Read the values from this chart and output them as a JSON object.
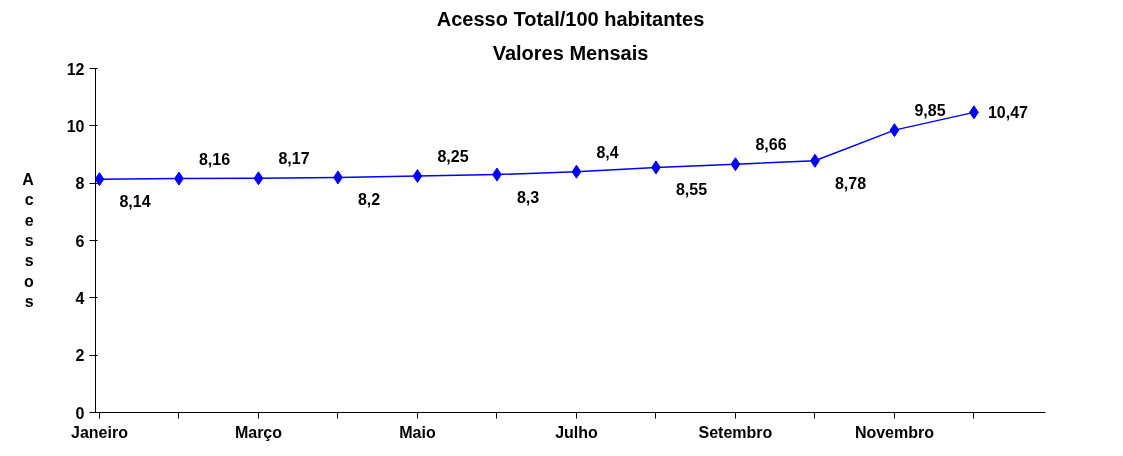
{
  "chart_data": {
    "type": "line",
    "title": "Acesso Total/100 habitantes",
    "subtitle": "Valores Mensais",
    "ylabel": "Acessos",
    "categories": [
      "Janeiro",
      null,
      "Março",
      null,
      "Maio",
      null,
      "Julho",
      null,
      "Setembro",
      null,
      "Novembro",
      null
    ],
    "series": [
      {
        "color": "#0000ff",
        "values": [
          8.14,
          8.16,
          8.17,
          8.2,
          8.25,
          8.3,
          8.4,
          8.55,
          8.66,
          8.78,
          9.85,
          10.47
        ],
        "value_labels": [
          "8,14",
          "8,16",
          "8,17",
          "8,2",
          "8,25",
          "8,3",
          "8,4",
          "8,55",
          "8,66",
          "8,78",
          "9,85",
          "10,47"
        ]
      }
    ],
    "ylim": [
      0,
      12
    ],
    "yticks": [
      0,
      2,
      4,
      6,
      8,
      10,
      12
    ],
    "grid": false,
    "marker": "diamond",
    "line_style": "solid"
  }
}
